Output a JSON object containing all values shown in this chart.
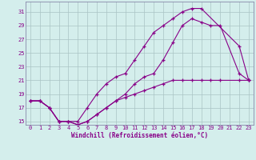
{
  "xlabel": "Windchill (Refroidissement éolien,°C)",
  "background_color": "#d4eeec",
  "grid_color": "#aac4c4",
  "line_color": "#880088",
  "spine_color": "#8888aa",
  "xlim": [
    -0.5,
    23.5
  ],
  "ylim": [
    14.5,
    32.5
  ],
  "xticks": [
    0,
    1,
    2,
    3,
    4,
    5,
    6,
    7,
    8,
    9,
    10,
    11,
    12,
    13,
    14,
    15,
    16,
    17,
    18,
    19,
    20,
    21,
    22,
    23
  ],
  "yticks": [
    15,
    17,
    19,
    21,
    23,
    25,
    27,
    29,
    31
  ],
  "line1_x": [
    0,
    1,
    2,
    3,
    4,
    5,
    6,
    7,
    8,
    9,
    10,
    11,
    12,
    13,
    14,
    15,
    16,
    17,
    18,
    22,
    23
  ],
  "line1_y": [
    18,
    18,
    17,
    15,
    15,
    15,
    17,
    19,
    20.5,
    21.5,
    22,
    24,
    26,
    28,
    29,
    30,
    31,
    31.5,
    31.5,
    26,
    21
  ],
  "line2_x": [
    0,
    1,
    2,
    3,
    4,
    5,
    6,
    7,
    8,
    9,
    10,
    11,
    12,
    13,
    14,
    15,
    16,
    17,
    18,
    19,
    20,
    22,
    23
  ],
  "line2_y": [
    18,
    18,
    17,
    15,
    15,
    14.5,
    15,
    16,
    17,
    18,
    19,
    20.5,
    21.5,
    22,
    24,
    26.5,
    29,
    30,
    29.5,
    29,
    29,
    22,
    21
  ],
  "line3_x": [
    0,
    1,
    2,
    3,
    4,
    5,
    6,
    7,
    8,
    9,
    10,
    11,
    12,
    13,
    14,
    15,
    16,
    17,
    18,
    19,
    20,
    22,
    23
  ],
  "line3_y": [
    18,
    18,
    17,
    15,
    15,
    14.5,
    15,
    16,
    17,
    18,
    18.5,
    19,
    19.5,
    20,
    20.5,
    21,
    21,
    21,
    21,
    21,
    21,
    21,
    21
  ]
}
